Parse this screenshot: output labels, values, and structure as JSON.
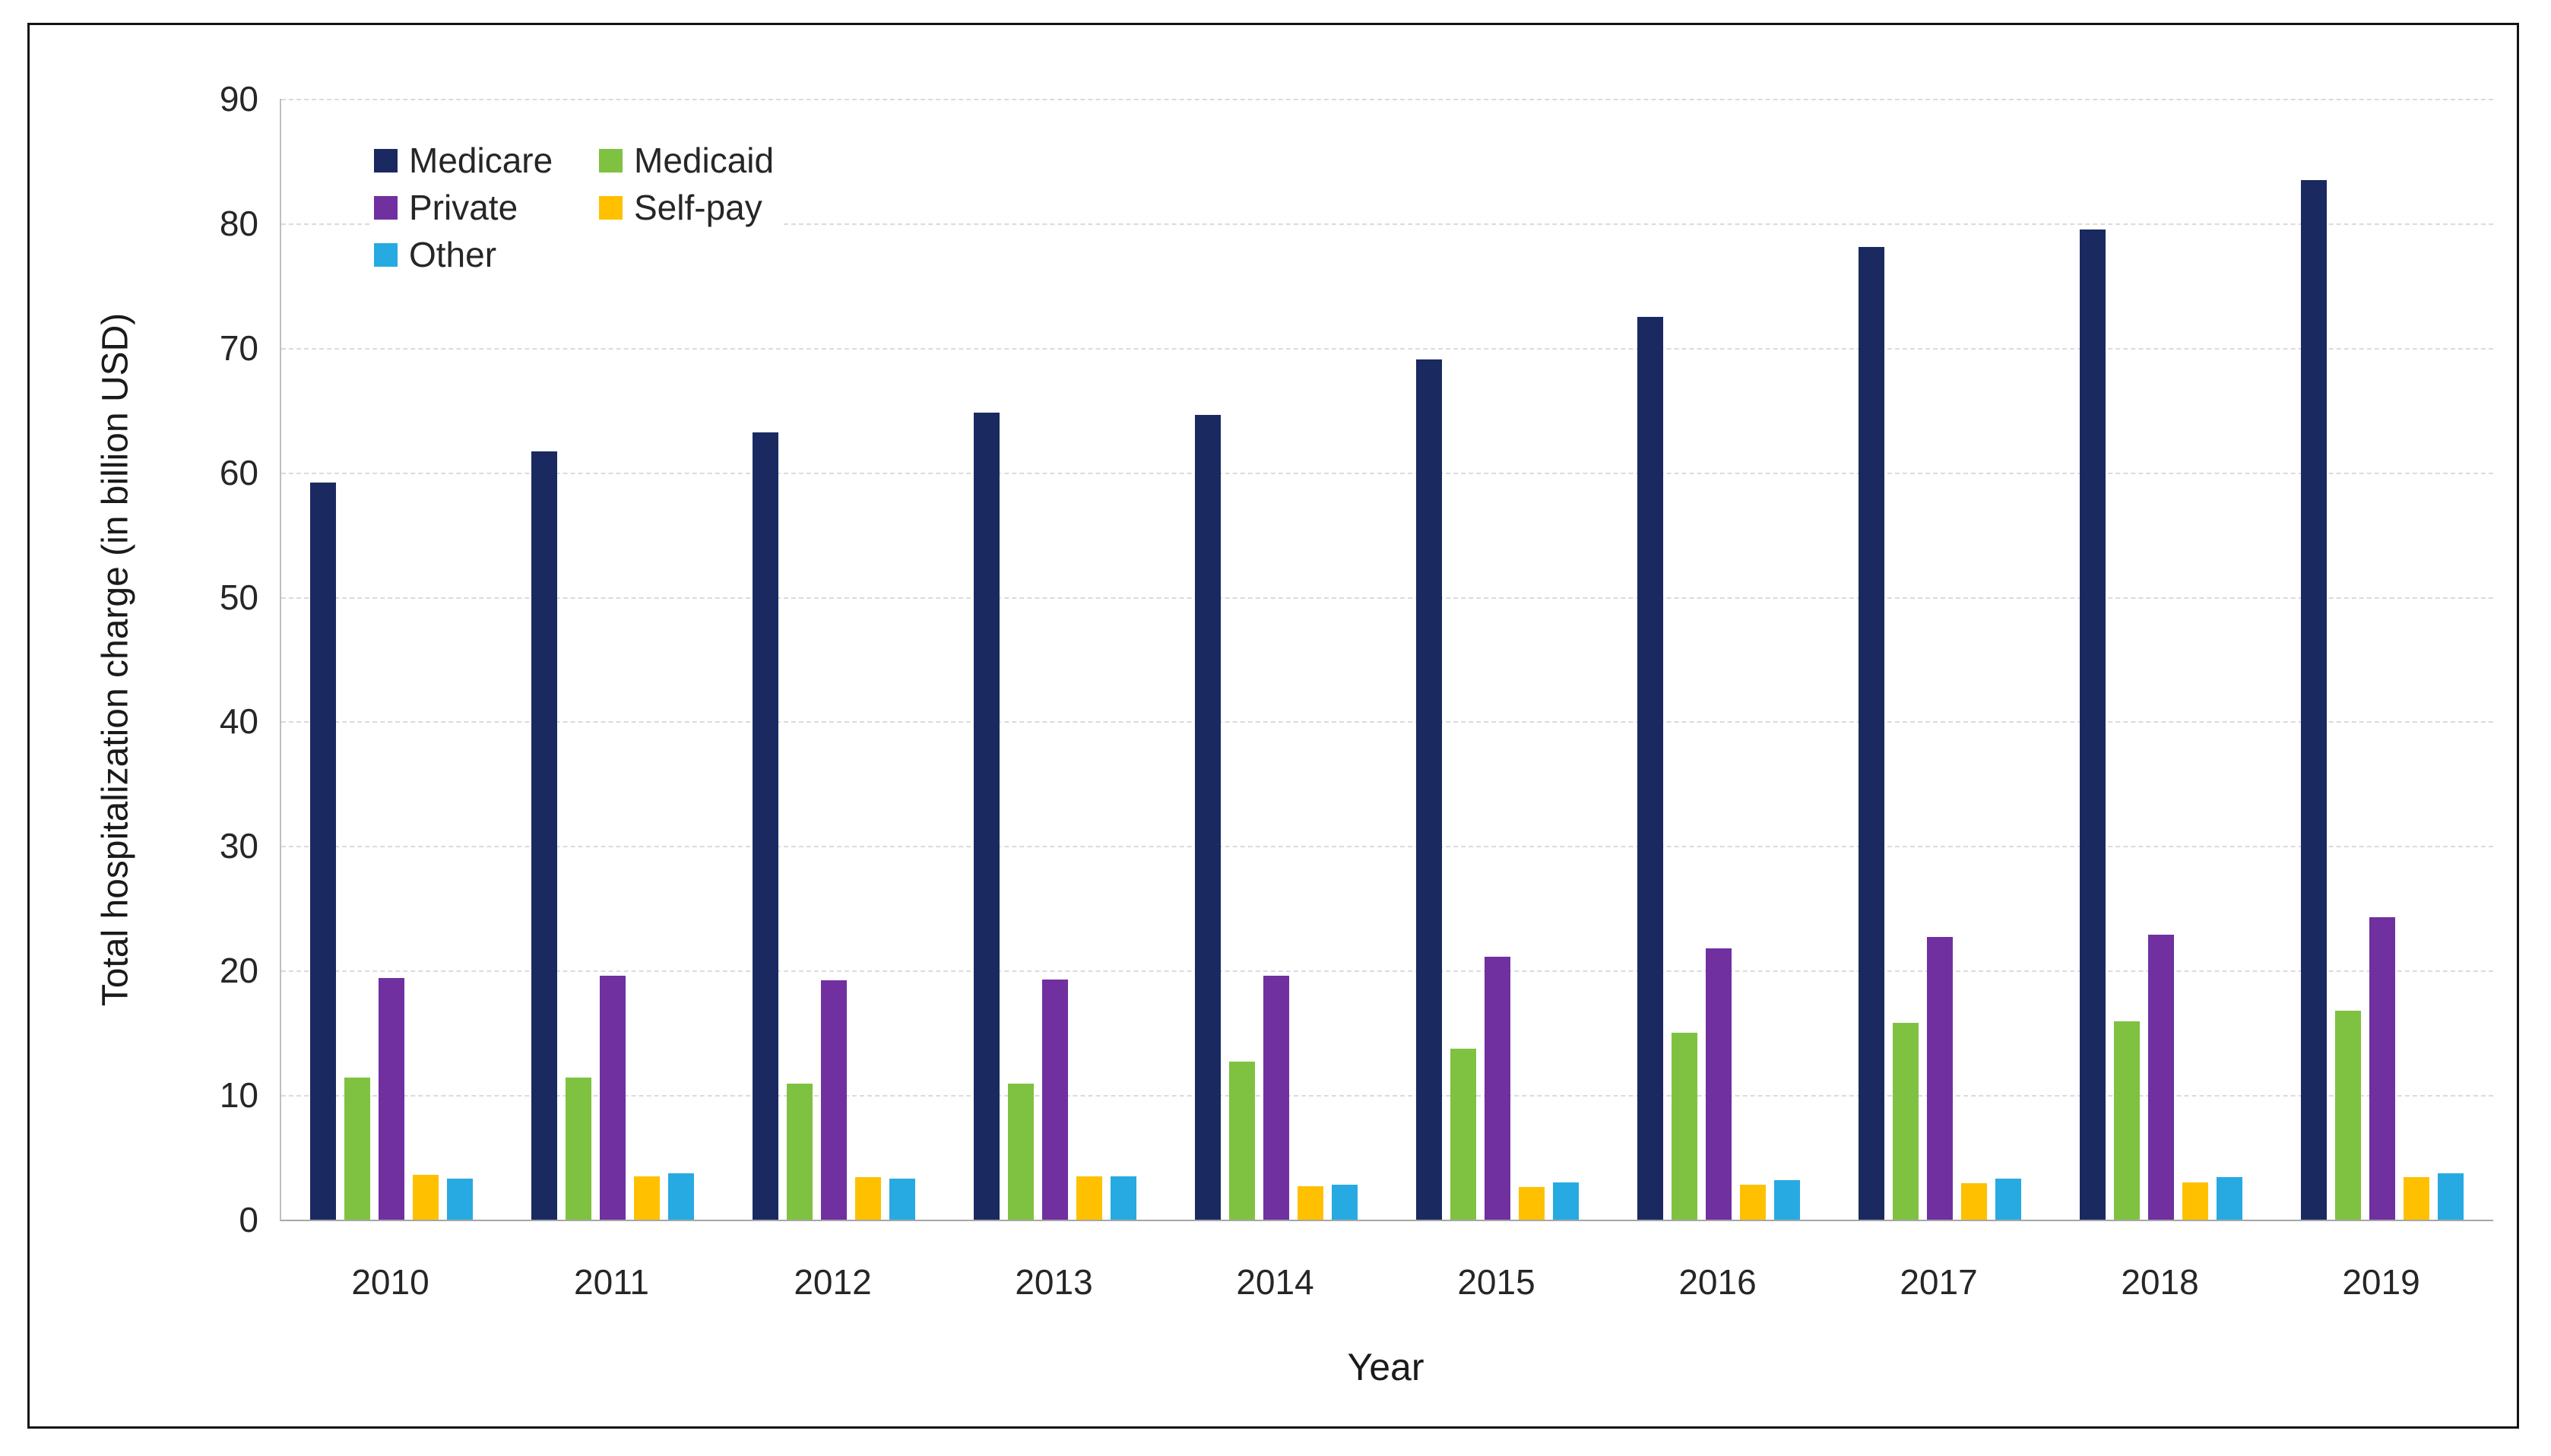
{
  "figure": {
    "background": "#FFFFFF",
    "border_color": "#141414"
  },
  "chart_data": {
    "type": "bar",
    "title": "",
    "xlabel": "Year",
    "ylabel": "Total hospitalization charge (in billion USD)",
    "ylim": [
      0,
      90
    ],
    "ytick_step": 10,
    "ytick_labels": [
      "0",
      "10",
      "20",
      "30",
      "40",
      "50",
      "60",
      "70",
      "80",
      "90"
    ],
    "grid": "horizontal-dashed",
    "gridline_color": "#DBDBDB",
    "axis_line_color": "#A6A6A6",
    "legend_position": "top-left-inside",
    "legend": {
      "columns": 2,
      "rows": [
        [
          "Medicare",
          "Medicaid"
        ],
        [
          "Private",
          "Self-pay"
        ],
        [
          "Other"
        ]
      ]
    },
    "categories": [
      "2010",
      "2011",
      "2012",
      "2013",
      "2014",
      "2015",
      "2016",
      "2017",
      "2018",
      "2019"
    ],
    "series": [
      {
        "name": "Medicare",
        "color": "#1A2960",
        "values": [
          59.2,
          61.7,
          63.2,
          64.8,
          64.6,
          69.1,
          72.5,
          78.1,
          79.5,
          83.5
        ]
      },
      {
        "name": "Medicaid",
        "color": "#7FC241",
        "values": [
          11.4,
          11.4,
          10.9,
          10.9,
          12.7,
          13.7,
          15.0,
          15.8,
          15.9,
          16.8
        ]
      },
      {
        "name": "Private",
        "color": "#7030A0",
        "values": [
          19.4,
          19.6,
          19.2,
          19.3,
          19.6,
          21.1,
          21.8,
          22.7,
          22.9,
          24.3
        ]
      },
      {
        "name": "Self-pay",
        "color": "#FFC000",
        "values": [
          3.6,
          3.5,
          3.4,
          3.5,
          2.7,
          2.6,
          2.8,
          2.9,
          3.0,
          3.4
        ]
      },
      {
        "name": "Other",
        "color": "#27AAE1",
        "values": [
          3.3,
          3.7,
          3.3,
          3.5,
          2.8,
          3.0,
          3.2,
          3.3,
          3.4,
          3.7
        ]
      }
    ]
  }
}
